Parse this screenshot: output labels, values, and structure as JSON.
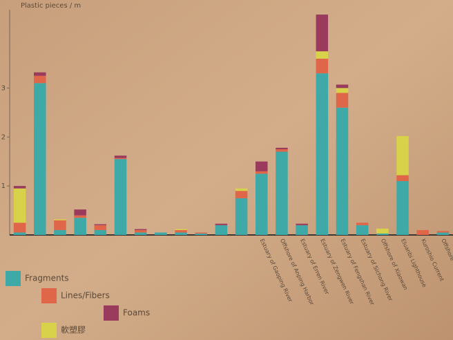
{
  "chart_data": {
    "type": "bar",
    "stacked": true,
    "y_label": "Plastic pieces / m",
    "categories": [
      null,
      null,
      null,
      null,
      null,
      null,
      null,
      null,
      null,
      null,
      null,
      null,
      "Estuary of Gaoping River",
      "Offshore of Anping Harbor",
      "Estuary of Erren River",
      "Estuary of Zengwen River",
      "Estuary of Fengshan River",
      "Estuary of Sichong River",
      "Offshore of Xiaowan",
      "Eluanbi Lighthouse",
      "Kuroshio Current",
      "Offshore"
    ],
    "series": [
      {
        "name": "Fragments",
        "color": "#3fa9a8",
        "values": [
          0.05,
          3.1,
          0.1,
          0.35,
          0.1,
          1.55,
          0.05,
          0.05,
          0.05,
          0.03,
          0.2,
          0.75,
          1.25,
          1.7,
          0.2,
          3.3,
          2.6,
          0.2,
          0.03,
          1.1,
          0,
          0.05
        ]
      },
      {
        "name": "Lines/Fibers",
        "color": "#e0664a",
        "values": [
          0.2,
          0.15,
          0.2,
          0.05,
          0.1,
          0.02,
          0.05,
          0,
          0.05,
          0.02,
          0,
          0.15,
          0.05,
          0.05,
          0,
          0.3,
          0.3,
          0.05,
          0,
          0.12,
          0.1,
          0.03
        ]
      },
      {
        "name": "軟塑膠",
        "color": "#d8d24a",
        "values": [
          0.7,
          0,
          0.02,
          0,
          0,
          0,
          0,
          0,
          0.02,
          0,
          0,
          0.05,
          0,
          0,
          0,
          0.15,
          0.1,
          0,
          0.1,
          0.8,
          0,
          0
        ]
      },
      {
        "name": "Foams",
        "color": "#9a3a5c",
        "values": [
          0.05,
          0.07,
          0,
          0.12,
          0.02,
          0.05,
          0.02,
          0,
          0,
          0,
          0.03,
          0,
          0.2,
          0.03,
          0.03,
          0.75,
          0.07,
          0,
          0,
          0,
          0,
          0
        ]
      }
    ],
    "ylim": [
      0,
      4.6
    ],
    "yticks": [
      1,
      2,
      3
    ],
    "legend": "bottom"
  }
}
